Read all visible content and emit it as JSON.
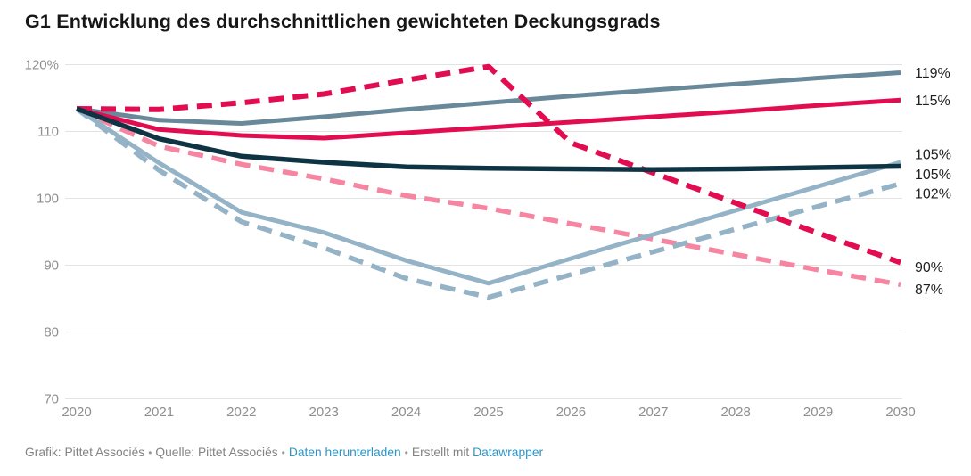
{
  "title": "G1 Entwicklung des durchschnittlichen gewichteten Deckungsgrads",
  "colors": {
    "grid": "#e3e3e3",
    "axis_text": "#8f8f8f",
    "value_text": "#1f1f1f",
    "title_text": "#161616",
    "link": "#2a96c8",
    "footer_text": "#838383",
    "slate": "#69899a",
    "crimson": "#e10d50",
    "dark_teal": "#0e3444",
    "light_blue": "#95b3c6",
    "pink": "#f685a1"
  },
  "chart_data": {
    "type": "line",
    "title": "G1 Entwicklung des durchschnittlichen gewichteten Deckungsgrads",
    "xlabel": "",
    "ylabel": "",
    "ylim": [
      70,
      120
    ],
    "grid": "horizontal",
    "legend_position": "right-end-labels",
    "x": [
      2020,
      2021,
      2022,
      2023,
      2024,
      2025,
      2026,
      2027,
      2028,
      2029,
      2030
    ],
    "x_labels": [
      "2020",
      "2021",
      "2022",
      "2023",
      "2024",
      "2025",
      "2026",
      "2027",
      "2028",
      "2029",
      "2030"
    ],
    "y_ticks": [
      {
        "value": 120,
        "label": "120%"
      },
      {
        "value": 110,
        "label": "110"
      },
      {
        "value": 100,
        "label": "100"
      },
      {
        "value": 90,
        "label": "90"
      },
      {
        "value": 80,
        "label": "80"
      },
      {
        "value": 70,
        "label": "70"
      }
    ],
    "series": [
      {
        "name": "pink-dashed",
        "color": "#f685a1",
        "dashed": true,
        "width": 5.5,
        "end_label": "87%",
        "label_dy": 5,
        "values": [
          113.4,
          107.8,
          105.1,
          102.9,
          100.4,
          98.5,
          96.2,
          93.9,
          91.6,
          89.3,
          87.1
        ]
      },
      {
        "name": "lightblue-dashed",
        "color": "#95b3c6",
        "dashed": true,
        "width": 5.5,
        "end_label": "102%",
        "label_dy": 11,
        "values": [
          113.4,
          104.2,
          96.5,
          92.6,
          88.0,
          85.2,
          88.6,
          92.0,
          95.4,
          98.8,
          102.2
        ]
      },
      {
        "name": "lightblue-solid",
        "color": "#95b3c6",
        "dashed": false,
        "width": 5,
        "end_label": "105%",
        "label_dy": -9,
        "values": [
          113.4,
          105.3,
          97.9,
          94.9,
          90.7,
          87.3,
          91.0,
          94.6,
          98.2,
          101.8,
          105.4
        ]
      },
      {
        "name": "slate-solid",
        "color": "#69899a",
        "dashed": false,
        "width": 5,
        "end_label": "119%",
        "label_dy": 0,
        "values": [
          113.4,
          111.7,
          111.2,
          112.2,
          113.3,
          114.3,
          115.3,
          116.2,
          117.1,
          118.0,
          118.8
        ]
      },
      {
        "name": "crimson-dashed",
        "color": "#e10d50",
        "dashed": true,
        "width": 6,
        "end_label": "90%",
        "label_dy": 5,
        "values": [
          113.4,
          113.3,
          114.3,
          115.6,
          117.7,
          119.7,
          108.3,
          103.8,
          99.3,
          94.8,
          90.4
        ]
      },
      {
        "name": "crimson-solid",
        "color": "#e10d50",
        "dashed": false,
        "width": 5,
        "end_label": "115%",
        "label_dy": 0,
        "values": [
          113.4,
          110.3,
          109.4,
          109.0,
          109.8,
          110.6,
          111.4,
          112.2,
          113.0,
          113.9,
          114.7
        ]
      },
      {
        "name": "darkteal-solid",
        "color": "#0e3444",
        "dashed": false,
        "width": 5.5,
        "end_label": "105%",
        "label_dy": 9,
        "values": [
          113.4,
          108.9,
          106.3,
          105.4,
          104.7,
          104.5,
          104.4,
          104.3,
          104.4,
          104.6,
          104.8
        ]
      }
    ]
  },
  "footer": {
    "grafik": "Grafik: Pittet Associés",
    "quelle": "Quelle: Pittet Associés",
    "download": "Daten herunterladen",
    "created": "Erstellt mit",
    "datawrapper": "Datawrapper",
    "bullet": "•"
  }
}
